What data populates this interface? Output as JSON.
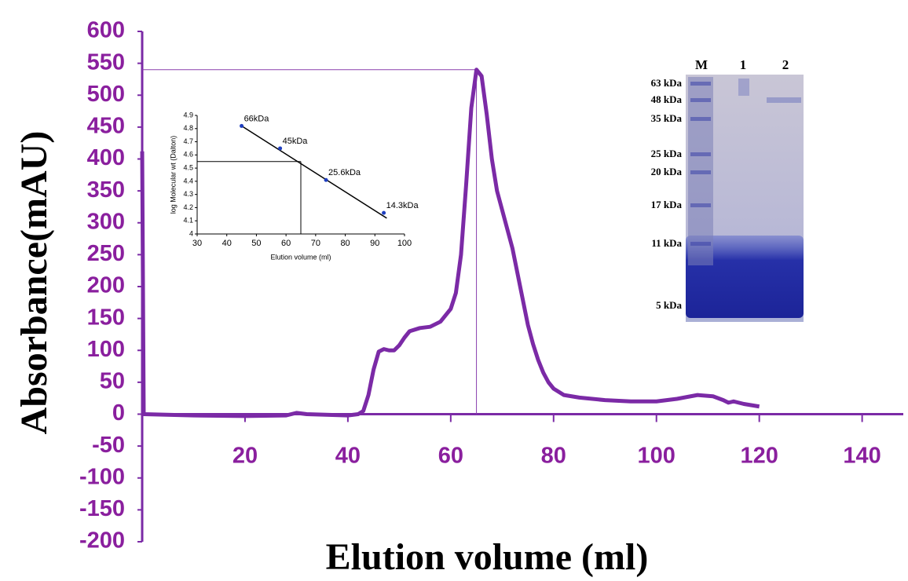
{
  "chart_data": [
    {
      "type": "line",
      "x_label": "Elution volume (ml)",
      "y_label": "Absorbance(mAU)",
      "color": "#7b2aa6",
      "x": [
        0,
        0.3,
        10,
        20,
        28,
        30,
        32,
        40,
        42,
        43,
        44,
        45,
        46,
        47,
        48,
        49,
        50,
        51,
        52,
        54,
        56,
        58,
        60,
        61,
        62,
        63,
        64,
        65,
        66,
        67,
        68,
        69,
        70,
        71,
        72,
        73,
        74,
        75,
        76,
        77,
        78,
        79,
        80,
        82,
        85,
        90,
        95,
        100,
        104,
        108,
        111,
        113,
        114,
        115,
        117,
        120
      ],
      "values": [
        412,
        0,
        -2,
        -3,
        -2,
        2,
        0,
        -2,
        0,
        5,
        30,
        70,
        98,
        102,
        100,
        100,
        108,
        120,
        130,
        135,
        137,
        145,
        165,
        190,
        250,
        360,
        480,
        540,
        530,
        470,
        400,
        350,
        320,
        290,
        260,
        220,
        180,
        140,
        110,
        85,
        65,
        50,
        40,
        30,
        26,
        22,
        20,
        20,
        24,
        30,
        28,
        22,
        18,
        20,
        16,
        12
      ],
      "vline_x": 65,
      "hline_y": 540,
      "xlim": [
        0,
        148
      ],
      "xticks": [
        20,
        40,
        60,
        80,
        100,
        120,
        140
      ],
      "ylim": [
        -200,
        600
      ],
      "yticks": [
        -200,
        -150,
        -100,
        -50,
        0,
        50,
        100,
        150,
        200,
        250,
        300,
        350,
        400,
        450,
        500,
        550,
        600
      ]
    },
    {
      "type": "scatter",
      "x_label": "Elution volume (ml)",
      "y_label": "log Molecular wt (Dalton)",
      "color": "#1f3fbf",
      "x": [
        45,
        58,
        73.5,
        93
      ],
      "values": [
        4.82,
        4.65,
        4.41,
        4.16
      ],
      "point_labels": [
        "66kDa",
        "45kDa",
        "25.6kDa",
        "14.3kDa"
      ],
      "trendline": {
        "x": [
          45,
          94
        ],
        "values": [
          4.82,
          4.12
        ]
      },
      "vline_x": 65,
      "hline_y": 4.55,
      "xlim": [
        30,
        100
      ],
      "xticks": [
        30,
        40,
        50,
        60,
        70,
        80,
        90,
        100
      ],
      "ylim": [
        4,
        4.9
      ],
      "yticks": [
        4,
        4.1,
        4.2,
        4.3,
        4.4,
        4.5,
        4.6,
        4.7,
        4.8,
        4.9
      ]
    }
  ],
  "gel": {
    "lanes": [
      "M",
      "1",
      "2"
    ],
    "markers": [
      "63 kDa",
      "48 kDa",
      "35 kDa",
      "25 kDa",
      "20 kDa",
      "17 kDa",
      "11 kDa",
      "5 kDa"
    ]
  }
}
